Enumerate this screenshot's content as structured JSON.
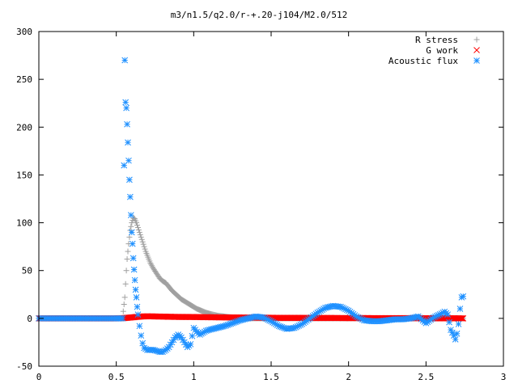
{
  "chart_data": {
    "type": "scatter",
    "title": "m3/n1.5/q2.0/r-+.20-j104/M2.0/512",
    "xlabel": "",
    "ylabel": "",
    "xlim": [
      0,
      3
    ],
    "ylim": [
      -50,
      300
    ],
    "x_ticks": [
      0,
      0.5,
      1,
      1.5,
      2,
      2.5,
      3
    ],
    "x_tick_labels": [
      "0",
      "0.5",
      "1",
      "1.5",
      "2",
      "2.5",
      "3"
    ],
    "y_ticks": [
      -50,
      0,
      50,
      100,
      150,
      200,
      250,
      300
    ],
    "y_tick_labels": [
      "-50",
      "0",
      "50",
      "100",
      "150",
      "200",
      "250",
      "300"
    ],
    "grid": false,
    "legend_position": "top-right",
    "series": [
      {
        "name": "R stress",
        "marker": "plus",
        "color": "#a0a0a0",
        "x": [
          0.0,
          0.1,
          0.2,
          0.3,
          0.4,
          0.5,
          0.54,
          0.555,
          0.56,
          0.565,
          0.57,
          0.58,
          0.59,
          0.6,
          0.61,
          0.62,
          0.63,
          0.64,
          0.65,
          0.66,
          0.67,
          0.68,
          0.69,
          0.7,
          0.72,
          0.74,
          0.76,
          0.78,
          0.8,
          0.81,
          0.82,
          0.84,
          0.86,
          0.88,
          0.9,
          0.92,
          0.94,
          0.96,
          0.98,
          1.0,
          1.02,
          1.05,
          1.08,
          1.1,
          1.15,
          1.2,
          1.25,
          1.3,
          1.35,
          1.4,
          1.5,
          1.6,
          1.8,
          2.0,
          2.2,
          2.4,
          2.6,
          2.7,
          2.74
        ],
        "y": [
          0,
          0,
          0,
          0,
          0,
          0,
          0,
          22,
          36,
          50,
          62,
          78,
          92,
          100,
          105,
          104,
          100,
          95,
          90,
          85,
          80,
          75,
          70,
          66,
          58,
          52,
          47,
          42,
          39,
          38,
          37,
          33,
          29,
          26,
          23,
          20,
          18,
          16,
          14,
          12,
          10,
          8,
          6,
          5,
          3,
          2,
          1,
          0,
          0,
          0,
          0,
          0,
          0,
          0,
          0,
          0,
          0,
          0,
          0
        ]
      },
      {
        "name": "G work",
        "marker": "cross",
        "color": "#ff0000",
        "x": [
          0.0,
          0.5,
          0.55,
          0.6,
          0.65,
          0.7,
          0.75,
          0.8,
          0.9,
          1.0,
          1.1,
          1.2,
          1.3,
          1.4,
          1.5,
          1.6,
          1.7,
          1.8,
          1.9,
          2.0,
          2.1,
          2.2,
          2.3,
          2.4,
          2.5,
          2.6,
          2.7,
          2.74
        ],
        "y": [
          0,
          0,
          0.3,
          1.0,
          1.8,
          2.2,
          2.0,
          1.8,
          1.5,
          1.4,
          1.2,
          1.0,
          0.9,
          0.8,
          0.6,
          0.5,
          0.5,
          0.4,
          0.4,
          0.3,
          0.3,
          0.2,
          0.2,
          0.2,
          0.1,
          0.1,
          0.1,
          0
        ]
      },
      {
        "name": "Acoustic flux",
        "marker": "star",
        "color": "#1e90ff",
        "x": [
          0.0,
          0.1,
          0.2,
          0.3,
          0.4,
          0.5,
          0.54,
          0.55,
          0.555,
          0.56,
          0.565,
          0.57,
          0.575,
          0.58,
          0.585,
          0.59,
          0.595,
          0.6,
          0.605,
          0.61,
          0.615,
          0.62,
          0.625,
          0.63,
          0.635,
          0.64,
          0.65,
          0.66,
          0.67,
          0.68,
          0.7,
          0.72,
          0.74,
          0.76,
          0.78,
          0.8,
          0.82,
          0.84,
          0.86,
          0.88,
          0.9,
          0.92,
          0.94,
          0.96,
          0.98,
          1.0,
          1.02,
          1.04,
          1.06,
          1.08,
          1.1,
          1.15,
          1.2,
          1.25,
          1.3,
          1.35,
          1.4,
          1.45,
          1.5,
          1.55,
          1.6,
          1.65,
          1.7,
          1.75,
          1.8,
          1.85,
          1.9,
          1.95,
          2.0,
          2.05,
          2.1,
          2.15,
          2.2,
          2.25,
          2.3,
          2.35,
          2.4,
          2.45,
          2.5,
          2.55,
          2.6,
          2.62,
          2.64,
          2.66,
          2.68,
          2.69,
          2.7,
          2.71,
          2.72,
          2.73,
          2.74
        ],
        "y": [
          0,
          0,
          0,
          0,
          0,
          0,
          0,
          160,
          270,
          226,
          220,
          203,
          184,
          165,
          145,
          127,
          108,
          90,
          78,
          63,
          51,
          40,
          30,
          22,
          12,
          4,
          -8,
          -18,
          -26,
          -31,
          -33,
          -33,
          -33,
          -34,
          -35,
          -35,
          -33,
          -30,
          -25,
          -20,
          -17,
          -20,
          -25,
          -30,
          -27,
          -10,
          -14,
          -17,
          -15,
          -13,
          -12,
          -10,
          -8,
          -5,
          -2,
          0,
          2,
          1,
          -3,
          -8,
          -11,
          -10,
          -6,
          0,
          6,
          11,
          13,
          12,
          8,
          2,
          -2,
          -3,
          -3,
          -2,
          -1,
          -1,
          0,
          2,
          -5,
          1,
          5,
          7,
          4,
          -12,
          -18,
          -22,
          -16,
          -6,
          10,
          22,
          23
        ]
      }
    ]
  }
}
